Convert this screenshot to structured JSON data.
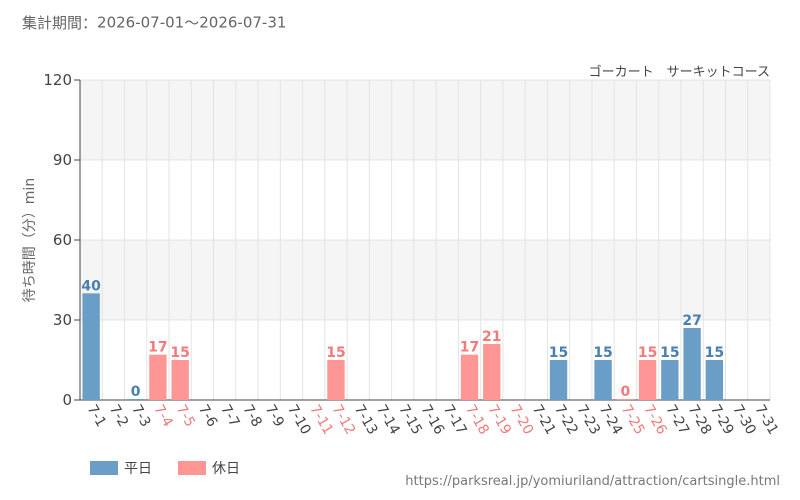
{
  "header": {
    "period_label": "集計期間",
    "period_sep": "：",
    "period_start": "2026-07-01",
    "period_range_sep": "～",
    "period_end": "2026-07-31",
    "attraction": "ゴーカート　サーキットコース"
  },
  "legend": {
    "weekday_label": "平日",
    "holiday_label": "休日"
  },
  "footer": {
    "source_url": "https://parksreal.jp/yomiuriland/attraction/cartsingle.html"
  },
  "colors": {
    "weekday": "#6a9ec7",
    "holiday": "#ff9696",
    "weekday_label": "#4a7fae",
    "holiday_label": "#f27a7a",
    "band": "#f5f5f5",
    "grid": "#e4e4e4",
    "axis": "#444444"
  },
  "chart_data": {
    "type": "bar",
    "ylabel": "待ち時間（分）min",
    "ylim": [
      0,
      120
    ],
    "yticks": [
      0,
      30,
      60,
      90,
      120
    ],
    "grid": true,
    "legend_position": "bottom-left",
    "categories": [
      "7-1",
      "7-2",
      "7-3",
      "7-4",
      "7-5",
      "7-6",
      "7-7",
      "7-8",
      "7-9",
      "7-10",
      "7-11",
      "7-12",
      "7-13",
      "7-14",
      "7-15",
      "7-16",
      "7-17",
      "7-18",
      "7-19",
      "7-20",
      "7-21",
      "7-22",
      "7-23",
      "7-24",
      "7-25",
      "7-26",
      "7-27",
      "7-28",
      "7-29",
      "7-30",
      "7-31"
    ],
    "day_type": [
      "weekday",
      "weekday",
      "weekday",
      "holiday",
      "holiday",
      "weekday",
      "weekday",
      "weekday",
      "weekday",
      "weekday",
      "holiday",
      "holiday",
      "weekday",
      "weekday",
      "weekday",
      "weekday",
      "weekday",
      "holiday",
      "holiday",
      "holiday",
      "weekday",
      "weekday",
      "weekday",
      "weekday",
      "holiday",
      "holiday",
      "weekday",
      "weekday",
      "weekday",
      "weekday",
      "weekday"
    ],
    "values": [
      40,
      null,
      0,
      17,
      15,
      null,
      null,
      null,
      null,
      null,
      null,
      15,
      null,
      null,
      null,
      null,
      null,
      17,
      21,
      null,
      null,
      15,
      null,
      15,
      0,
      15,
      15,
      27,
      15,
      null,
      null
    ]
  }
}
